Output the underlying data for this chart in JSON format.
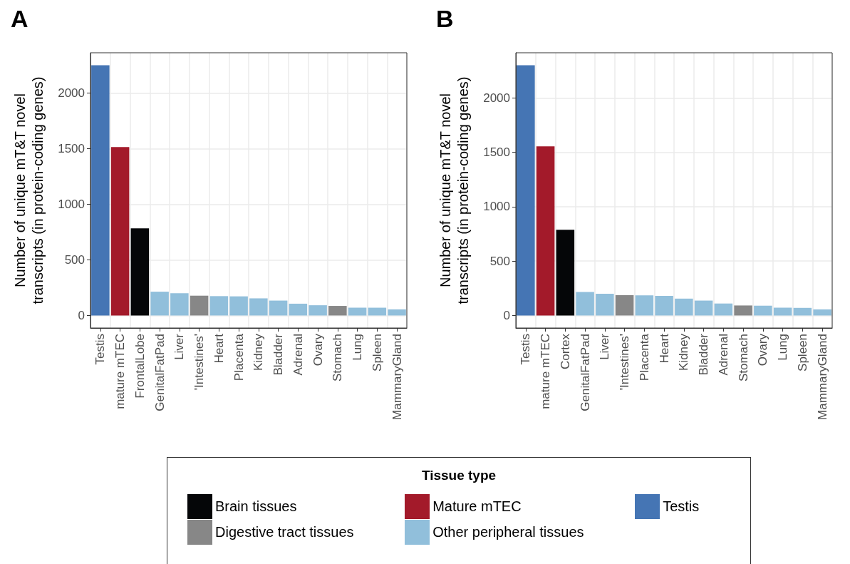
{
  "chart_data": [
    {
      "type": "bar",
      "title": "A",
      "ylabel": "Number of unique mT&T novel\ntranscripts (in protein-coding genes)",
      "legend_title": "Tissue type",
      "legend": "bottom",
      "grid": true,
      "categories": [
        "Testis",
        "mature mTEC",
        "FrontalLobe",
        "GenitalFatPad",
        "Liver",
        "'Intestines'",
        "Heart",
        "Placenta",
        "Kidney",
        "Bladder",
        "Adrenal",
        "Ovary",
        "Stomach",
        "Lung",
        "Spleen",
        "MammaryGland"
      ],
      "ylim": [
        -112.5,
        2362.5
      ],
      "yticks": [
        0,
        500,
        1000,
        1500,
        2000
      ],
      "series": [
        {
          "name": "Brain tissues",
          "color": "#050608",
          "values": [
            null,
            null,
            784,
            null,
            null,
            null,
            null,
            null,
            null,
            null,
            null,
            null,
            null,
            null,
            null,
            null
          ]
        },
        {
          "name": "Digestive tract tissues",
          "color": "#878787",
          "values": [
            null,
            null,
            null,
            null,
            null,
            178,
            null,
            null,
            null,
            null,
            null,
            null,
            86,
            null,
            null,
            null
          ]
        },
        {
          "name": "Mature mTEC",
          "color": "#a31a2a",
          "values": [
            null,
            1515,
            null,
            null,
            null,
            null,
            null,
            null,
            null,
            null,
            null,
            null,
            null,
            null,
            null,
            null
          ]
        },
        {
          "name": "Other peripheral tissues",
          "color": "#91bfdb",
          "values": [
            null,
            null,
            null,
            214,
            200,
            null,
            174,
            172,
            154,
            134,
            106,
            92,
            null,
            70,
            70,
            55
          ]
        },
        {
          "name": "Testis",
          "color": "#4575b4",
          "values": [
            2250,
            null,
            null,
            null,
            null,
            null,
            null,
            null,
            null,
            null,
            null,
            null,
            null,
            null,
            null,
            null
          ]
        }
      ]
    },
    {
      "type": "bar",
      "title": "B",
      "ylabel": "Number of unique mT&T novel\ntranscripts (in protein-coding genes)",
      "grid": true,
      "categories": [
        "Testis",
        "mature mTEC",
        "Cortex",
        "GenitalFatPad",
        "Liver",
        "'Intestines'",
        "Placenta",
        "Heart",
        "Kidney",
        "Bladder",
        "Adrenal",
        "Stomach",
        "Ovary",
        "Lung",
        "Spleen",
        "MammaryGland"
      ],
      "ylim": [
        -115,
        2415
      ],
      "yticks": [
        0,
        500,
        1000,
        1500,
        2000
      ],
      "series": [
        {
          "name": "Brain tissues",
          "color": "#050608",
          "values": [
            null,
            null,
            788,
            null,
            null,
            null,
            null,
            null,
            null,
            null,
            null,
            null,
            null,
            null,
            null,
            null
          ]
        },
        {
          "name": "Digestive tract tissues",
          "color": "#878787",
          "values": [
            null,
            null,
            null,
            null,
            null,
            187,
            null,
            null,
            null,
            null,
            null,
            92,
            null,
            null,
            null,
            null
          ]
        },
        {
          "name": "Mature mTEC",
          "color": "#a31a2a",
          "values": [
            null,
            1554,
            null,
            null,
            null,
            null,
            null,
            null,
            null,
            null,
            null,
            null,
            null,
            null,
            null,
            null
          ]
        },
        {
          "name": "Other peripheral tissues",
          "color": "#91bfdb",
          "values": [
            null,
            null,
            null,
            216,
            200,
            null,
            185,
            180,
            155,
            137,
            110,
            null,
            90,
            72,
            70,
            56
          ]
        },
        {
          "name": "Testis",
          "color": "#4575b4",
          "values": [
            2300,
            null,
            null,
            null,
            null,
            null,
            null,
            null,
            null,
            null,
            null,
            null,
            null,
            null,
            null,
            null
          ]
        }
      ]
    }
  ]
}
